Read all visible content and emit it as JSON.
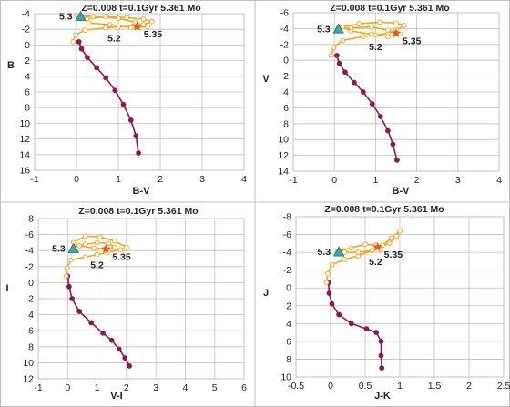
{
  "chart_data": [
    {
      "type": "scatter",
      "title": "Z=0.008  t=0.1Gyr  5.361 Mo",
      "xlabel": "B-V",
      "ylabel": "B",
      "xlim": [
        -1,
        4
      ],
      "ylim": [
        16,
        -4
      ],
      "y_inverted": true,
      "xticks": [
        -1,
        0,
        1,
        2,
        3,
        4
      ],
      "yticks": [
        -4,
        -2,
        0,
        2,
        4,
        6,
        8,
        10,
        12,
        14,
        16
      ],
      "grid": true,
      "series": [
        {
          "color": "#8b1a4f",
          "x": [
            0.06,
            0.12,
            0.26,
            0.48,
            0.7,
            0.92,
            1.12,
            1.3,
            1.42,
            1.48
          ],
          "y": [
            -0.4,
            0.5,
            1.6,
            2.9,
            4.2,
            5.8,
            7.6,
            9.6,
            11.6,
            13.8
          ]
        },
        {
          "color": "#f5a623",
          "x": [
            -0.08,
            -0.02,
            0.2,
            0.7,
            1.0,
            1.35,
            1.6,
            1.8,
            1.6,
            1.2,
            0.7,
            0.25,
            0.3,
            0.8,
            1.3,
            1.7,
            1.4,
            1.0,
            0.4,
            0.0
          ],
          "y": [
            -0.4,
            -1.3,
            -1.9,
            -2.2,
            -2.3,
            -2.4,
            -2.6,
            -3.0,
            -3.3,
            -3.5,
            -3.6,
            -3.3,
            -2.8,
            -2.6,
            -2.2,
            -2.3,
            -2.9,
            -3.4,
            -3.6,
            -3.8
          ]
        }
      ],
      "markers": [
        {
          "label": "5.3",
          "x": 0.1,
          "y": -3.6,
          "shape": "triangle",
          "color": "#3fa7a3"
        },
        {
          "label": "5.2",
          "x": 0.9,
          "y": -2.1,
          "shape": "none"
        },
        {
          "label": "5.35",
          "x": 1.45,
          "y": -2.35,
          "shape": "star",
          "color": "#e35a1c"
        }
      ]
    },
    {
      "type": "scatter",
      "title": "Z=0.008  t=0.1Gyr  5.361 Mo",
      "xlabel": "B-V",
      "ylabel": "V",
      "xlim": [
        -1,
        4
      ],
      "ylim": [
        14,
        -6
      ],
      "y_inverted": true,
      "xticks": [
        -1,
        0,
        1,
        2,
        3,
        4
      ],
      "yticks": [
        -6,
        -4,
        -2,
        0,
        2,
        4,
        6,
        8,
        10,
        12,
        14
      ],
      "grid": true,
      "series": [
        {
          "color": "#8b1a4f",
          "x": [
            0.06,
            0.12,
            0.26,
            0.48,
            0.7,
            0.92,
            1.12,
            1.3,
            1.42,
            1.52
          ],
          "y": [
            -0.6,
            0.4,
            1.5,
            2.8,
            4.0,
            5.5,
            7.1,
            8.9,
            10.6,
            12.6
          ]
        },
        {
          "color": "#f5a623",
          "x": [
            -0.08,
            -0.02,
            0.2,
            0.7,
            1.0,
            1.3,
            1.5,
            1.7,
            1.5,
            1.1,
            0.6,
            0.2,
            0.4,
            0.9,
            1.3,
            1.6,
            1.3,
            0.9,
            0.4,
            0.1
          ],
          "y": [
            -0.6,
            -1.6,
            -2.5,
            -3.0,
            -3.2,
            -3.4,
            -3.8,
            -4.4,
            -4.7,
            -4.8,
            -4.6,
            -4.2,
            -3.7,
            -3.3,
            -3.0,
            -3.3,
            -3.8,
            -4.2,
            -4.1,
            -3.9
          ]
        }
      ],
      "markers": [
        {
          "label": "5.3",
          "x": 0.1,
          "y": -3.9,
          "shape": "triangle",
          "color": "#3fa7a3"
        },
        {
          "label": "5.2",
          "x": 1.0,
          "y": -2.9,
          "shape": "none"
        },
        {
          "label": "5.35",
          "x": 1.5,
          "y": -3.4,
          "shape": "star",
          "color": "#e35a1c"
        }
      ]
    },
    {
      "type": "scatter",
      "title": "Z=0.008  t=0.1Gyr  5.361 Mo",
      "xlabel": "V-I",
      "ylabel": "I",
      "xlim": [
        -1,
        6
      ],
      "ylim": [
        12,
        -8
      ],
      "y_inverted": true,
      "xticks": [
        -1,
        0,
        1,
        2,
        3,
        4,
        5,
        6
      ],
      "yticks": [
        -8,
        -6,
        -4,
        -2,
        0,
        2,
        4,
        6,
        8,
        10,
        12
      ],
      "grid": true,
      "series": [
        {
          "color": "#8b1a4f",
          "x": [
            0.0,
            0.05,
            0.15,
            0.4,
            0.8,
            1.2,
            1.5,
            1.75,
            1.95,
            2.1
          ],
          "y": [
            -0.8,
            0.5,
            2.0,
            3.6,
            5.0,
            6.3,
            7.2,
            8.3,
            9.4,
            10.4
          ]
        },
        {
          "color": "#f5a623",
          "x": [
            -0.05,
            -0.02,
            0.1,
            0.6,
            1.0,
            1.4,
            1.8,
            2.0,
            1.6,
            1.1,
            0.6,
            0.2,
            0.4,
            0.9,
            1.3,
            1.6,
            1.4,
            1.0,
            0.6,
            0.2
          ],
          "y": [
            -0.8,
            -1.8,
            -2.8,
            -3.2,
            -3.5,
            -3.8,
            -4.1,
            -4.4,
            -5.2,
            -5.7,
            -5.8,
            -5.0,
            -4.6,
            -4.3,
            -4.2,
            -4.4,
            -4.9,
            -5.0,
            -4.8,
            -4.4
          ]
        }
      ],
      "markers": [
        {
          "label": "5.3",
          "x": 0.2,
          "y": -4.2,
          "shape": "triangle",
          "color": "#3fa7a3"
        },
        {
          "label": "5.2",
          "x": 1.0,
          "y": -3.4,
          "shape": "none"
        },
        {
          "label": "5.35",
          "x": 1.3,
          "y": -4.2,
          "shape": "star",
          "color": "#e35a1c"
        }
      ]
    },
    {
      "type": "scatter",
      "title": "Z=0.008  t=0.1Gyr  5.361 Mo",
      "xlabel": "J-K",
      "ylabel": "J",
      "xlim": [
        -0.5,
        2.5
      ],
      "ylim": [
        10,
        -8
      ],
      "y_inverted": true,
      "xticks": [
        -0.5,
        0,
        0.5,
        1,
        1.5,
        2,
        2.5
      ],
      "yticks": [
        -8,
        -6,
        -4,
        -2,
        0,
        2,
        4,
        6,
        8,
        10
      ],
      "grid": true,
      "series": [
        {
          "color": "#8b1a4f",
          "x": [
            -0.03,
            -0.02,
            0.02,
            0.12,
            0.3,
            0.52,
            0.66,
            0.73,
            0.73,
            0.74
          ],
          "y": [
            -0.6,
            0.6,
            1.8,
            3.0,
            4.0,
            4.6,
            5.0,
            6.0,
            7.6,
            9.0
          ]
        },
        {
          "color": "#f5a623",
          "x": [
            -0.06,
            -0.04,
            0.02,
            0.2,
            0.4,
            0.6,
            0.72,
            0.85,
            0.95,
            1.0,
            0.88,
            0.75,
            0.6,
            0.4,
            0.2,
            0.1,
            0.3,
            0.5,
            0.65,
            0.72
          ],
          "y": [
            -0.6,
            -1.6,
            -2.6,
            -3.2,
            -3.6,
            -4.2,
            -4.6,
            -5.0,
            -5.8,
            -6.4,
            -5.6,
            -4.8,
            -4.2,
            -4.0,
            -4.0,
            -4.1,
            -4.5,
            -4.9,
            -4.8,
            -4.3
          ]
        }
      ],
      "markers": [
        {
          "label": "5.3",
          "x": 0.12,
          "y": -4.0,
          "shape": "triangle",
          "color": "#3fa7a3"
        },
        {
          "label": "5.2",
          "x": 0.65,
          "y": -4.0,
          "shape": "none"
        },
        {
          "label": "5.35",
          "x": 0.68,
          "y": -4.6,
          "shape": "star",
          "color": "#e35a1c"
        }
      ]
    }
  ]
}
